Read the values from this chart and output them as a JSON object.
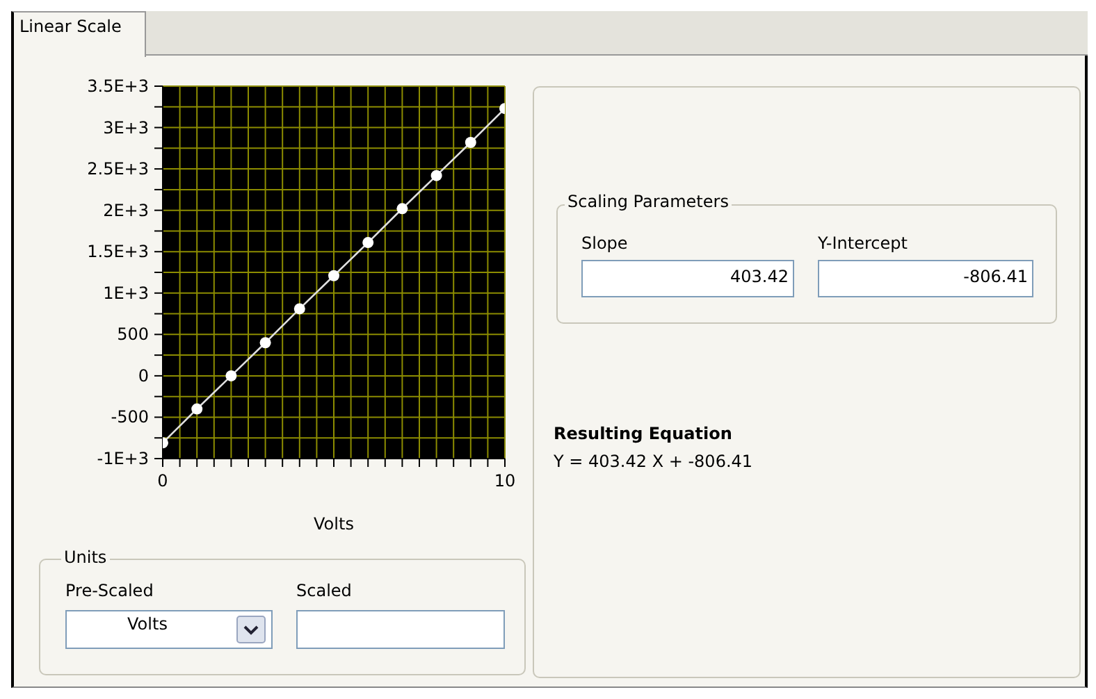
{
  "chart_data": {
    "type": "line",
    "xlabel": "Volts",
    "x": [
      0,
      1,
      2,
      3,
      4,
      5,
      6,
      7,
      8,
      9,
      10
    ],
    "series": [
      {
        "color": "#e0e0e0",
        "values": [
          -810,
          -400,
          0,
          400,
          810,
          1210,
          1610,
          2020,
          2420,
          2820,
          3230
        ]
      }
    ],
    "xlim": [
      0,
      10
    ],
    "xticks": [
      0,
      {
        "value": 0.5,
        "label": null
      },
      {
        "value": 1,
        "label": null
      },
      {
        "value": 1.5,
        "label": null
      },
      {
        "value": 2,
        "label": null
      },
      {
        "value": 2.5,
        "label": null
      },
      {
        "value": 3,
        "label": null
      },
      {
        "value": 3.5,
        "label": null
      },
      {
        "value": 4,
        "label": null
      },
      {
        "value": 4.5,
        "label": null
      },
      {
        "value": 5,
        "label": null
      },
      {
        "value": 5.5,
        "label": null
      },
      {
        "value": 6,
        "label": null
      },
      {
        "value": 6.5,
        "label": null
      },
      {
        "value": 7,
        "label": null
      },
      {
        "value": 7.5,
        "label": null
      },
      {
        "value": 8,
        "label": null
      },
      {
        "value": 8.5,
        "label": null
      },
      {
        "value": 9,
        "label": null
      },
      {
        "value": 9.5,
        "label": null
      },
      10
    ],
    "ylim": [
      -1000,
      3500
    ],
    "yticks": [
      {
        "value": -1000,
        "label": "-1E+3"
      },
      {
        "value": -750,
        "label": null
      },
      -500,
      {
        "value": -250,
        "label": null
      },
      0,
      {
        "value": 250,
        "label": null
      },
      500,
      {
        "value": 750,
        "label": null
      },
      {
        "value": 1000,
        "label": "1E+3"
      },
      {
        "value": 1250,
        "label": null
      },
      {
        "value": 1500,
        "label": "1.5E+3"
      },
      {
        "value": 1750,
        "label": null
      },
      {
        "value": 2000,
        "label": "2E+3"
      },
      {
        "value": 2250,
        "label": null
      },
      {
        "value": 2500,
        "label": "2.5E+3"
      },
      {
        "value": 2750,
        "label": null
      },
      {
        "value": 3000,
        "label": "3E+3"
      },
      {
        "value": 3250,
        "label": null
      },
      {
        "value": 3500,
        "label": "3.5E+3"
      }
    ],
    "grid": true,
    "marker": "circle",
    "line_style": "solid",
    "annotations": [
      "Linear Scale",
      "Units",
      "Pre-Scaled",
      "Volts",
      "Scaled",
      "Scaling Parameters",
      "Slope",
      "403.42",
      "Y-Intercept",
      "-806.41",
      "Resulting Equation",
      "Y = 403.42 X + -806.41"
    ]
  }
}
